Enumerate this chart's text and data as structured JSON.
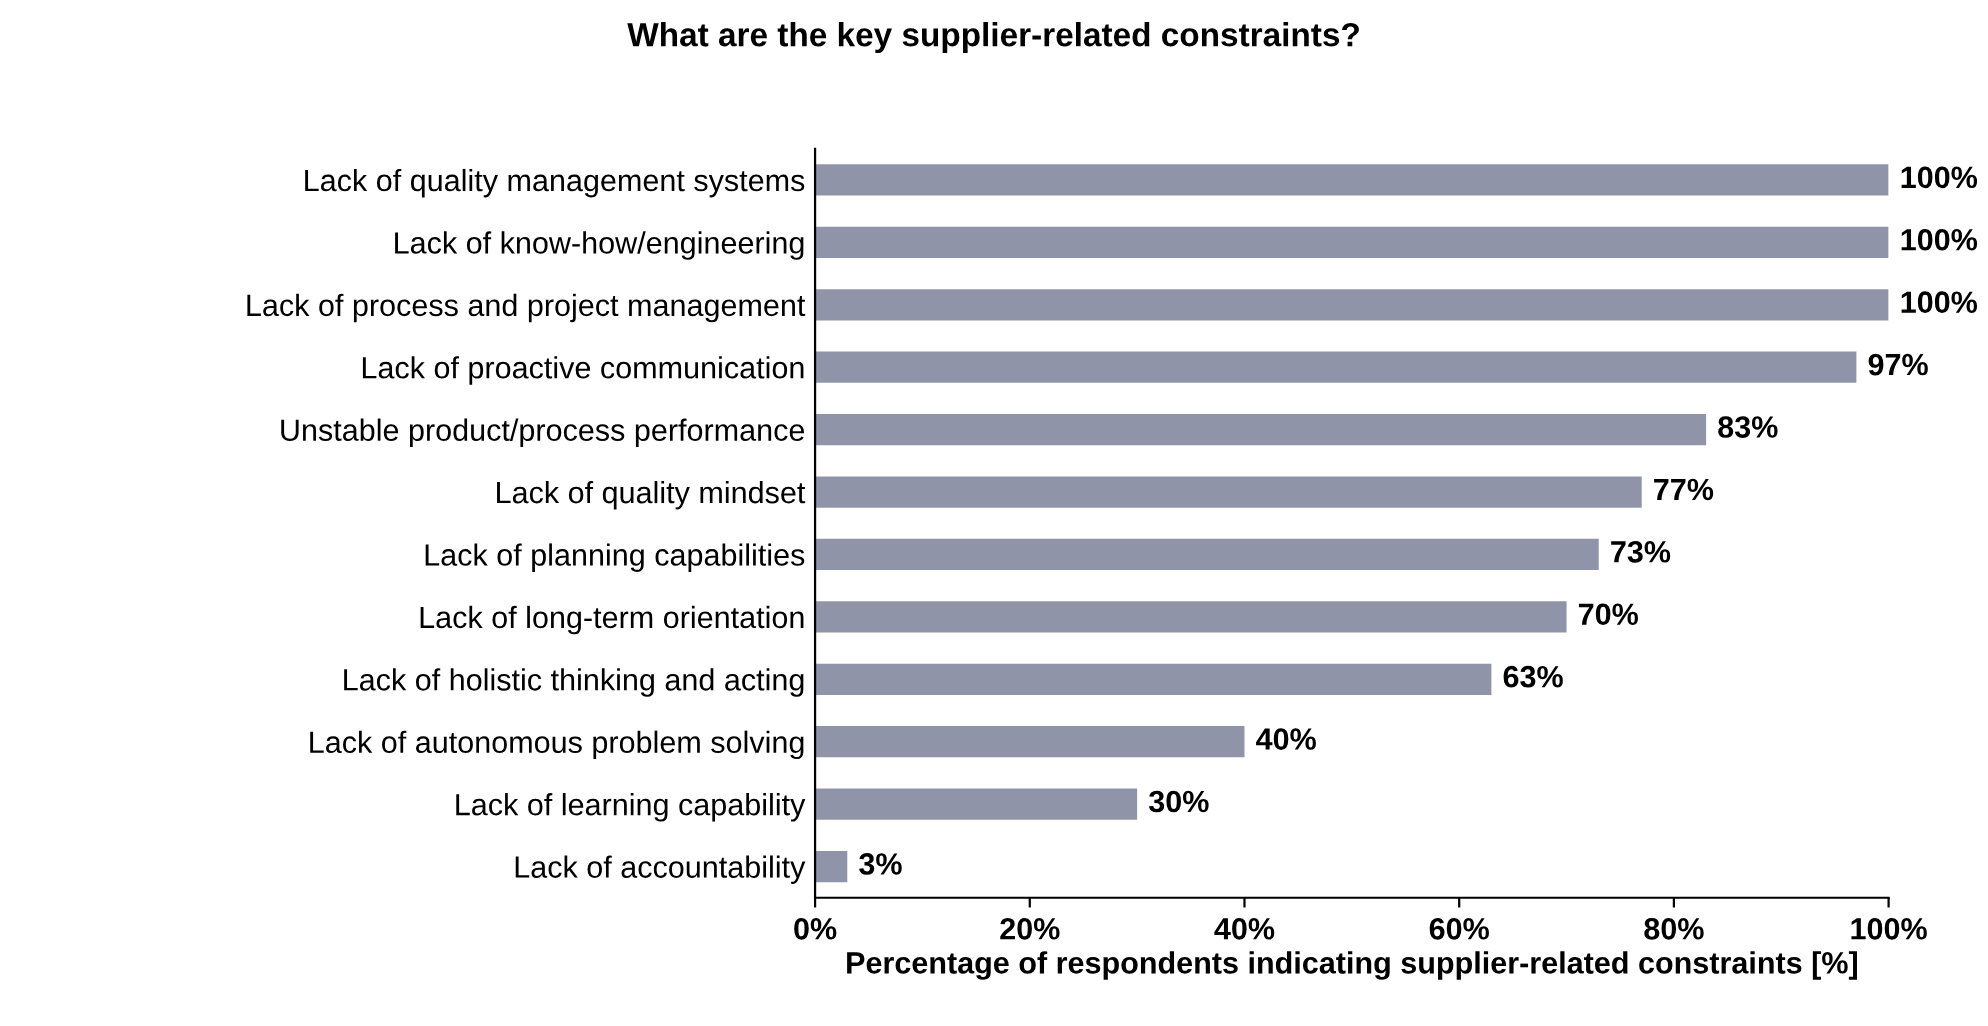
{
  "chart_data": {
    "type": "bar",
    "orientation": "horizontal",
    "title": "What are the key supplier-related constraints?",
    "xlabel": "Percentage of respondents indicating supplier-related constraints [%]",
    "categories": [
      "Lack of quality management systems",
      "Lack of know-how/engineering",
      "Lack of process and project management",
      "Lack of proactive communication",
      "Unstable product/process performance",
      "Lack of quality mindset",
      "Lack of planning capabilities",
      "Lack of long-term orientation",
      "Lack of holistic thinking and acting",
      "Lack of autonomous problem solving",
      "Lack of learning capability",
      "Lack of accountability"
    ],
    "values": [
      100,
      100,
      100,
      97,
      83,
      77,
      73,
      70,
      63,
      40,
      30,
      3
    ],
    "value_labels": [
      "100%",
      "100%",
      "100%",
      "97%",
      "83%",
      "77%",
      "73%",
      "70%",
      "63%",
      "40%",
      "30%",
      "3%"
    ],
    "color": "#9094a8",
    "xlim": [
      0,
      100
    ],
    "xticks": [
      {
        "value": 0,
        "label": "0%"
      },
      {
        "value": 20,
        "label": "20%"
      },
      {
        "value": 40,
        "label": "40%"
      },
      {
        "value": 60,
        "label": "60%"
      },
      {
        "value": 80,
        "label": "80%"
      },
      {
        "value": 100,
        "label": "100%"
      }
    ],
    "grid": false
  }
}
